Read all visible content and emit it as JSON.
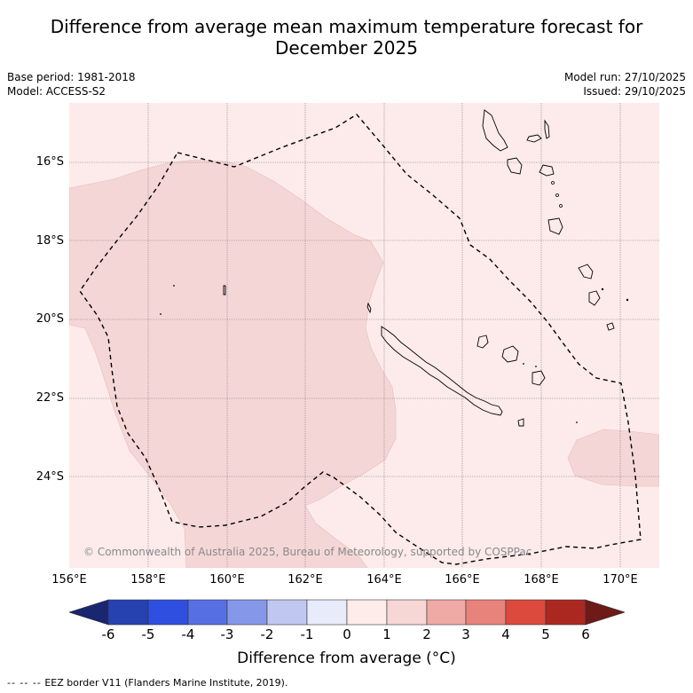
{
  "title_line1": "Difference from average mean maximum temperature forecast for",
  "title_line2": "December 2025",
  "base_period": "Base period: 1981-2018",
  "model": "Model: ACCESS-S2",
  "model_run": "Model run: 27/10/2025",
  "issued": "Issued: 29/10/2025",
  "lat_labels": [
    "16°S",
    "18°S",
    "20°S",
    "22°S",
    "24°S"
  ],
  "lon_labels": [
    "156°E",
    "158°E",
    "160°E",
    "162°E",
    "164°E",
    "166°E",
    "168°E",
    "170°E"
  ],
  "copyright": "© Commonwealth of Australia 2025, Bureau of Meteorology, supported by COSPPac",
  "colorbar": {
    "ticks": [
      "-6",
      "-5",
      "-4",
      "-3",
      "-2",
      "-1",
      "0",
      "1",
      "2",
      "3",
      "4",
      "5",
      "6"
    ],
    "colors": [
      "#1a2670",
      "#2542b0",
      "#2e4fe0",
      "#5670e3",
      "#8597e8",
      "#c0c8f2",
      "#e8ebfa",
      "#fdece9",
      "#f7d6d6",
      "#f0aaa5",
      "#e8837c",
      "#dc4a3e",
      "#ab2820",
      "#6e1a16"
    ],
    "title": "Difference from average (°C)"
  },
  "legend": {
    "dash": "-- -- --",
    "text": "EEZ border V11 (Flanders Marine Institute, 2019)."
  },
  "fills": {
    "background": "#fcebea",
    "anomaly_1_2": "#f5d6d6"
  }
}
